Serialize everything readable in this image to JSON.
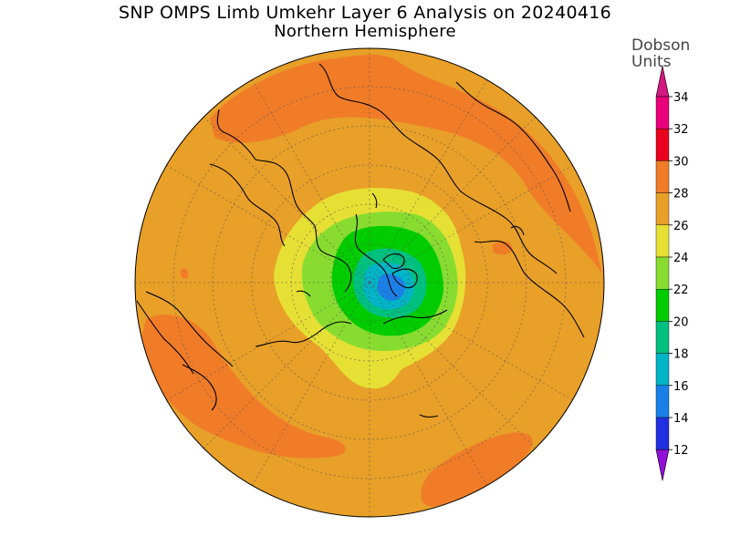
{
  "title": "SNP OMPS Limb Umkehr Layer 6 Analysis on 20240416",
  "subtitle": "Northern Hemisphere",
  "colorbar": {
    "unit_line1": "Dobson",
    "unit_line2": "Units",
    "levels": [
      {
        "label": "34",
        "color": "#e8007a"
      },
      {
        "label": "32",
        "color": "#e8001c"
      },
      {
        "label": "30",
        "color": "#f07c28"
      },
      {
        "label": "28",
        "color": "#e8a028"
      },
      {
        "label": "26",
        "color": "#e6e034"
      },
      {
        "label": "24",
        "color": "#88dc30"
      },
      {
        "label": "22",
        "color": "#00cc00"
      },
      {
        "label": "20",
        "color": "#00c080"
      },
      {
        "label": "18",
        "color": "#00b4c8"
      },
      {
        "label": "16",
        "color": "#1a80e8"
      },
      {
        "label": "14",
        "color": "#2030e0"
      },
      {
        "label": "12",
        "color": "#6010c8"
      }
    ],
    "top_arrow_color": "#d01880",
    "bottom_arrow_color": "#9010d8"
  },
  "map_colors": {
    "background": "#e8a028",
    "orange_band": "#f07c28",
    "yellow": "#e6e034",
    "light_green": "#88dc30",
    "green": "#00cc00",
    "teal": "#00c080",
    "cyan": "#00b4c8",
    "blue": "#1a80e8",
    "red": "#e8001c"
  }
}
